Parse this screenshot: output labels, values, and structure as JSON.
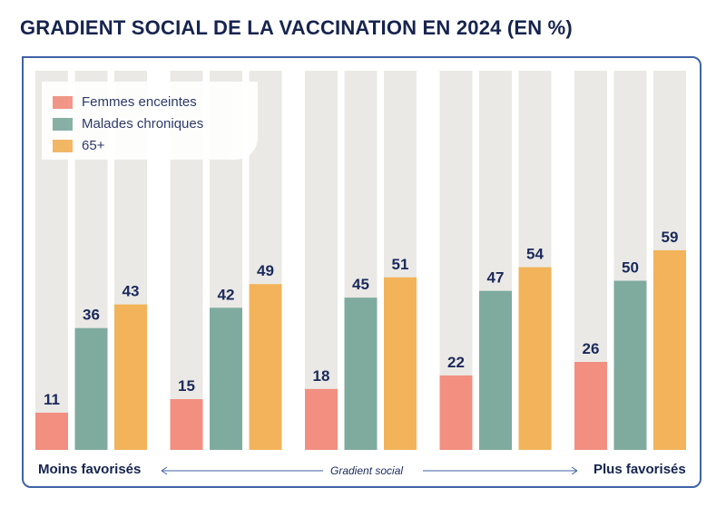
{
  "title": "GRADIENT SOCIAL DE LA VACCINATION EN 2024 (EN %)",
  "colors": {
    "frame": "#3f63a6",
    "track": "#ebe9e5",
    "text": "#1b2a5c"
  },
  "chart_data": {
    "type": "bar",
    "title": "GRADIENT SOCIAL DE LA VACCINATION EN 2024 (EN %)",
    "categories": [
      "Moins favorisés",
      "",
      "",
      "",
      "Plus favorisés"
    ],
    "ylim": [
      0,
      100
    ],
    "grid": false,
    "legend_position": "top-left",
    "series": [
      {
        "name": "Femmes enceintes",
        "color": "#f28f80",
        "values": [
          11,
          15,
          18,
          22,
          26
        ]
      },
      {
        "name": "Malades chroniques",
        "color": "#7fab9f",
        "values": [
          36,
          42,
          45,
          47,
          50
        ]
      },
      {
        "name": "65+",
        "color": "#f2b35a",
        "values": [
          43,
          49,
          51,
          54,
          59
        ]
      }
    ]
  },
  "axis": {
    "left_label": "Moins favorisés",
    "center_label": "Gradient social",
    "right_label": "Plus favorisés"
  }
}
